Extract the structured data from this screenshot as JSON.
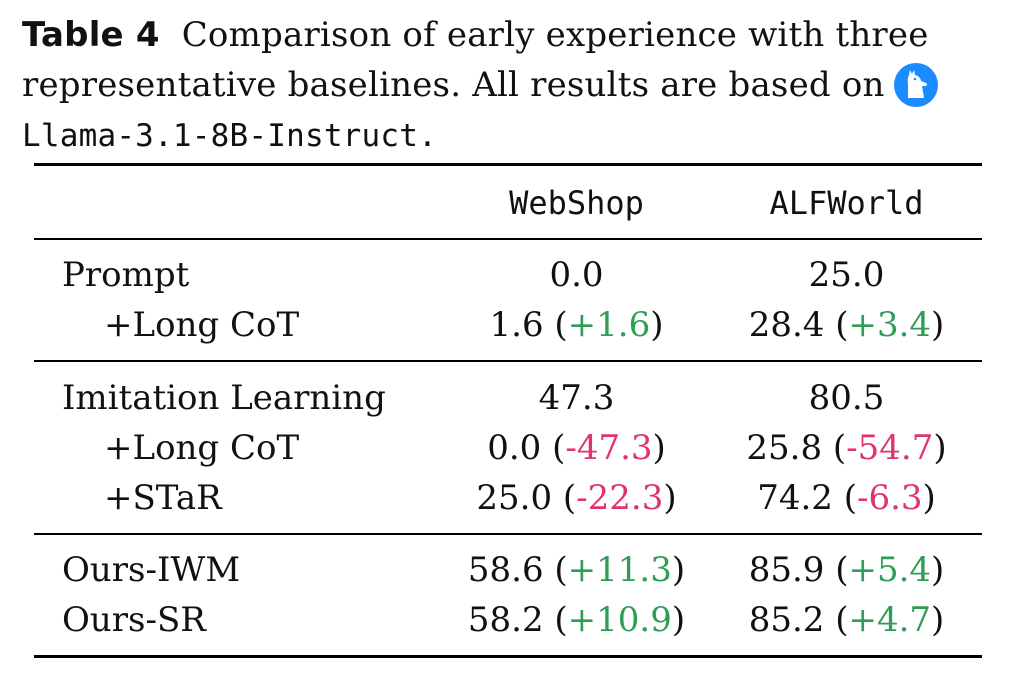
{
  "caption": {
    "label": "Table 4",
    "text": "Comparison of early experience with three representative baselines. All results are based on",
    "model": "Llama-3.1-8B-Instruct.",
    "logo_icon": "llama-icon"
  },
  "table": {
    "headers": [
      "",
      "WebShop",
      "ALFWorld"
    ],
    "groups": [
      {
        "rows": [
          {
            "method": "Prompt",
            "indent": false,
            "webshop": "0.0",
            "webshop_delta": "",
            "alfworld": "25.0",
            "alfworld_delta": ""
          },
          {
            "method": "+Long CoT",
            "indent": true,
            "webshop": "1.6",
            "webshop_delta": "+1.6",
            "alfworld": "28.4",
            "alfworld_delta": "+3.4"
          }
        ]
      },
      {
        "rows": [
          {
            "method": "Imitation Learning",
            "indent": false,
            "webshop": "47.3",
            "webshop_delta": "",
            "alfworld": "80.5",
            "alfworld_delta": ""
          },
          {
            "method": "+Long CoT",
            "indent": true,
            "webshop": "0.0",
            "webshop_delta": "-47.3",
            "alfworld": "25.8",
            "alfworld_delta": "-54.7"
          },
          {
            "method": "+STaR",
            "indent": true,
            "webshop": "25.0",
            "webshop_delta": "-22.3",
            "alfworld": "74.2",
            "alfworld_delta": "-6.3"
          }
        ]
      },
      {
        "rows": [
          {
            "method": "Ours-IWM",
            "indent": false,
            "webshop": "58.6",
            "webshop_delta": "+11.3",
            "alfworld": "85.9",
            "alfworld_delta": "+5.4"
          },
          {
            "method": "Ours-SR",
            "indent": false,
            "webshop": "58.2",
            "webshop_delta": "+10.9",
            "alfworld": "85.2",
            "alfworld_delta": "+4.7"
          }
        ]
      }
    ],
    "colors": {
      "positive": "#2e9e56",
      "negative": "#e0336f"
    }
  }
}
